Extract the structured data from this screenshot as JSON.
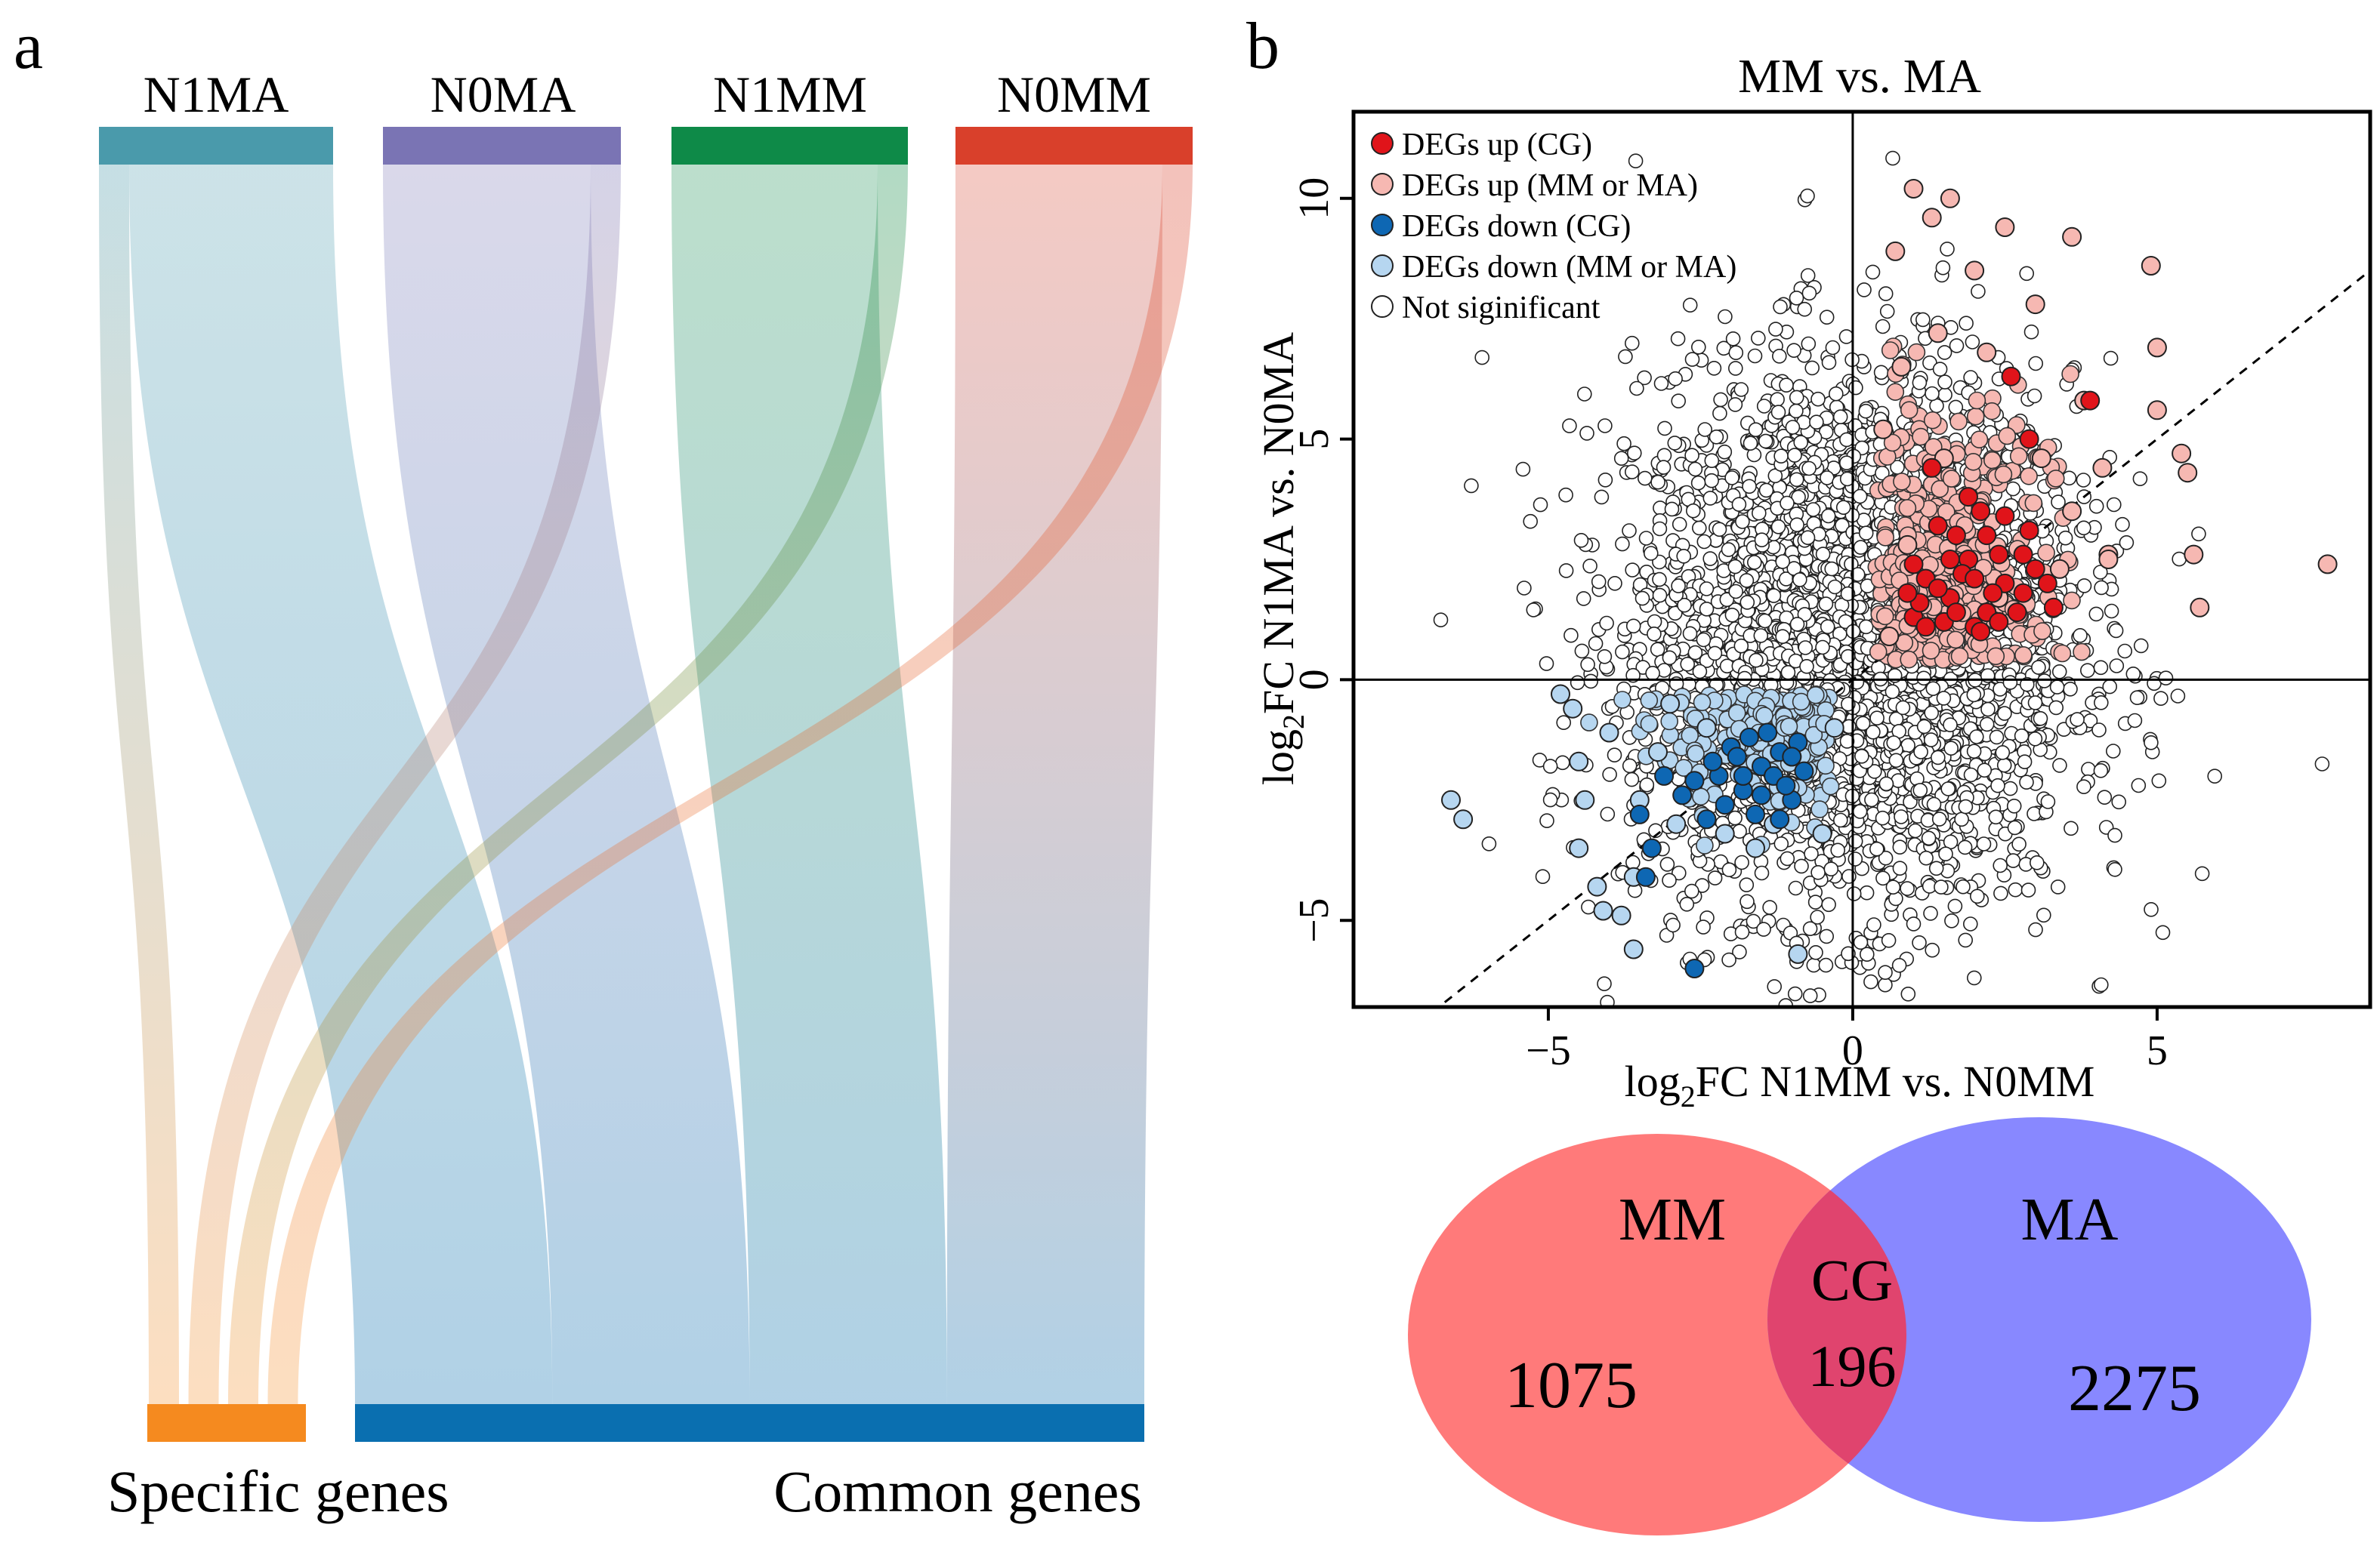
{
  "panel_a": {
    "label": "a",
    "sources": [
      {
        "name": "N1MA",
        "color": "#4a9aab"
      },
      {
        "name": "N0MA",
        "color": "#7a74b4"
      },
      {
        "name": "N1MM",
        "color": "#0e8a48"
      },
      {
        "name": "N0MM",
        "color": "#d9402b"
      }
    ],
    "targets": [
      {
        "name": "Specific genes",
        "color": "#f58a1f"
      },
      {
        "name": "Common genes",
        "color": "#0a6fb0"
      }
    ]
  },
  "panel_b": {
    "label": "b",
    "venn": {
      "left": {
        "name": "MM",
        "count": "1075",
        "color": "#ff7a7a"
      },
      "right": {
        "name": "MA",
        "count": "2275",
        "color": "#8888ff"
      },
      "overlap": {
        "name": "CG",
        "count": "196",
        "color": "#e0446e"
      }
    }
  },
  "colors": {
    "up_cg": "#e0141a",
    "up_other": "#f6b8b2",
    "down_cg": "#0e67b3",
    "down_other": "#b6d6f0",
    "not_sig": "#ffffff"
  },
  "chart_data": [
    {
      "type": "sankey",
      "nodes_top": [
        "N1MA",
        "N0MA",
        "N1MM",
        "N0MM"
      ],
      "nodes_bottom": [
        "Specific genes",
        "Common genes"
      ],
      "links": [
        {
          "source": "N1MA",
          "target": "Specific genes",
          "weight": 0.1
        },
        {
          "source": "N1MA",
          "target": "Common genes",
          "weight": 0.9
        },
        {
          "source": "N0MA",
          "target": "Specific genes",
          "weight": 0.1
        },
        {
          "source": "N0MA",
          "target": "Common genes",
          "weight": 0.9
        },
        {
          "source": "N1MM",
          "target": "Specific genes",
          "weight": 0.1
        },
        {
          "source": "N1MM",
          "target": "Common genes",
          "weight": 0.9
        },
        {
          "source": "N0MM",
          "target": "Specific genes",
          "weight": 0.1
        },
        {
          "source": "N0MM",
          "target": "Common genes",
          "weight": 0.9
        }
      ]
    },
    {
      "type": "scatter",
      "title": "MM vs. MA",
      "xlabel": "log2FC N1MM vs. N0MM",
      "ylabel": "log2FC N1MA vs. N0MA",
      "xlim": [
        -8.2,
        8.5
      ],
      "ylim": [
        -6.8,
        11.8
      ],
      "xticks": [
        -5,
        0,
        5
      ],
      "yticks": [
        -5,
        0,
        5,
        10
      ],
      "reference_lines": {
        "x0": true,
        "y0": true,
        "diagonal": "y = x (dashed)"
      },
      "legend": {
        "position": "top-left",
        "entries": [
          {
            "label": "DEGs up (CG)",
            "key": "up_cg"
          },
          {
            "label": "DEGs up (MM or MA)",
            "key": "up_other"
          },
          {
            "label": "DEGs down (CG)",
            "key": "down_cg"
          },
          {
            "label": "DEGs down (MM or MA)",
            "key": "down_other"
          },
          {
            "label": "Not  siginificant",
            "key": "not_sig"
          }
        ]
      },
      "highlighted_points": {
        "up_cg": [
          [
            1.2,
            2.1
          ],
          [
            1.6,
            1.7
          ],
          [
            1.9,
            2.5
          ],
          [
            2.2,
            1.4
          ],
          [
            2.5,
            2.0
          ],
          [
            1.4,
            3.2
          ],
          [
            2.1,
            3.5
          ],
          [
            1.0,
            1.3
          ],
          [
            2.8,
            1.8
          ],
          [
            1.7,
            3.0
          ],
          [
            2.0,
            1.1
          ],
          [
            3.3,
            1.5
          ],
          [
            2.6,
            6.3
          ],
          [
            2.9,
            5.0
          ],
          [
            3.9,
            5.8
          ],
          [
            1.3,
            4.4
          ],
          [
            2.4,
            2.6
          ],
          [
            1.8,
            2.2
          ],
          [
            1.1,
            1.6
          ],
          [
            2.3,
            1.8
          ],
          [
            1.5,
            1.2
          ],
          [
            3.0,
            2.3
          ],
          [
            2.7,
            1.4
          ],
          [
            1.9,
            3.8
          ],
          [
            2.2,
            3.0
          ],
          [
            1.6,
            2.5
          ],
          [
            2.1,
            1.0
          ],
          [
            1.4,
            1.9
          ],
          [
            2.8,
            2.6
          ],
          [
            3.2,
            2.0
          ],
          [
            1.0,
            2.4
          ],
          [
            2.5,
            3.4
          ],
          [
            1.2,
            1.1
          ],
          [
            1.7,
            1.4
          ],
          [
            2.0,
            2.1
          ],
          [
            2.9,
            3.1
          ],
          [
            0.9,
            1.8
          ],
          [
            2.4,
            1.2
          ]
        ],
        "down_cg": [
          [
            -1.5,
            -1.8
          ],
          [
            -1.8,
            -2.3
          ],
          [
            -1.2,
            -1.5
          ],
          [
            -2.2,
            -2.0
          ],
          [
            -1.0,
            -2.5
          ],
          [
            -2.6,
            -2.1
          ],
          [
            -1.6,
            -2.8
          ],
          [
            -0.9,
            -1.3
          ],
          [
            -1.3,
            -2.0
          ],
          [
            -2.0,
            -1.4
          ],
          [
            -2.4,
            -2.9
          ],
          [
            -3.1,
            -2.0
          ],
          [
            -3.5,
            -2.8
          ],
          [
            -3.3,
            -3.5
          ],
          [
            -3.4,
            -4.1
          ],
          [
            -2.6,
            -6.0
          ],
          [
            -1.9,
            -1.6
          ],
          [
            -1.1,
            -2.2
          ],
          [
            -1.4,
            -1.1
          ],
          [
            -2.1,
            -2.6
          ],
          [
            -1.7,
            -1.2
          ],
          [
            -0.8,
            -1.9
          ],
          [
            -2.8,
            -2.4
          ],
          [
            -1.5,
            -2.4
          ],
          [
            -1.2,
            -2.9
          ],
          [
            -2.3,
            -1.7
          ],
          [
            -1.0,
            -1.6
          ],
          [
            -1.8,
            -2.0
          ]
        ],
        "up_other": [
          [
            1.0,
            10.2
          ],
          [
            1.6,
            10.0
          ],
          [
            2.5,
            9.4
          ],
          [
            1.3,
            9.6
          ],
          [
            3.6,
            9.2
          ],
          [
            4.9,
            8.6
          ],
          [
            0.7,
            8.9
          ],
          [
            2.0,
            8.5
          ],
          [
            3.0,
            7.8
          ],
          [
            5.0,
            6.9
          ],
          [
            3.8,
            5.8
          ],
          [
            5.0,
            5.6
          ],
          [
            5.5,
            4.3
          ],
          [
            5.6,
            2.6
          ],
          [
            5.7,
            1.5
          ],
          [
            7.8,
            2.4
          ],
          [
            5.4,
            4.7
          ],
          [
            4.1,
            4.4
          ],
          [
            4.2,
            2.6
          ],
          [
            4.2,
            2.5
          ],
          [
            1.5,
            4.6
          ],
          [
            0.9,
            2.8
          ],
          [
            0.5,
            5.2
          ],
          [
            2.4,
            1.7
          ],
          [
            3.6,
            3.5
          ],
          [
            3.4,
            2.3
          ],
          [
            0.6,
            0.9
          ],
          [
            1.4,
            7.2
          ],
          [
            2.2,
            6.8
          ],
          [
            0.8,
            6.5
          ],
          [
            3.1,
            4.6
          ]
        ],
        "down_other": [
          [
            -1.0,
            -1.6
          ],
          [
            -3.5,
            -2.5
          ],
          [
            -4.6,
            -0.6
          ],
          [
            -4.0,
            -1.1
          ],
          [
            -4.5,
            -1.7
          ],
          [
            -4.4,
            -2.5
          ],
          [
            -6.6,
            -2.5
          ],
          [
            -6.4,
            -2.9
          ],
          [
            -4.5,
            -3.5
          ],
          [
            -4.2,
            -4.3
          ],
          [
            -3.6,
            -4.1
          ],
          [
            -4.1,
            -4.8
          ],
          [
            -3.8,
            -4.9
          ],
          [
            -3.6,
            -5.6
          ],
          [
            -0.9,
            -5.7
          ],
          [
            -2.1,
            -3.2
          ],
          [
            -1.3,
            -3.0
          ],
          [
            -2.9,
            -3.0
          ],
          [
            -1.6,
            -3.5
          ],
          [
            -4.8,
            -0.3
          ],
          [
            -3.0,
            -0.5
          ],
          [
            -0.5,
            -3.2
          ],
          [
            -2.4,
            -1.0
          ],
          [
            -3.2,
            -1.5
          ],
          [
            -0.3,
            -1.0
          ]
        ]
      },
      "not_significant_cloud": {
        "center": [
          0.0,
          0.8
        ],
        "sd_x": 1.8,
        "sd_y": 2.8,
        "approx_points": 3500
      }
    },
    {
      "type": "venn",
      "sets": [
        {
          "name": "MM",
          "only": 1075
        },
        {
          "name": "MA",
          "only": 2275
        }
      ],
      "intersection": {
        "name": "CG",
        "value": 196
      }
    }
  ]
}
